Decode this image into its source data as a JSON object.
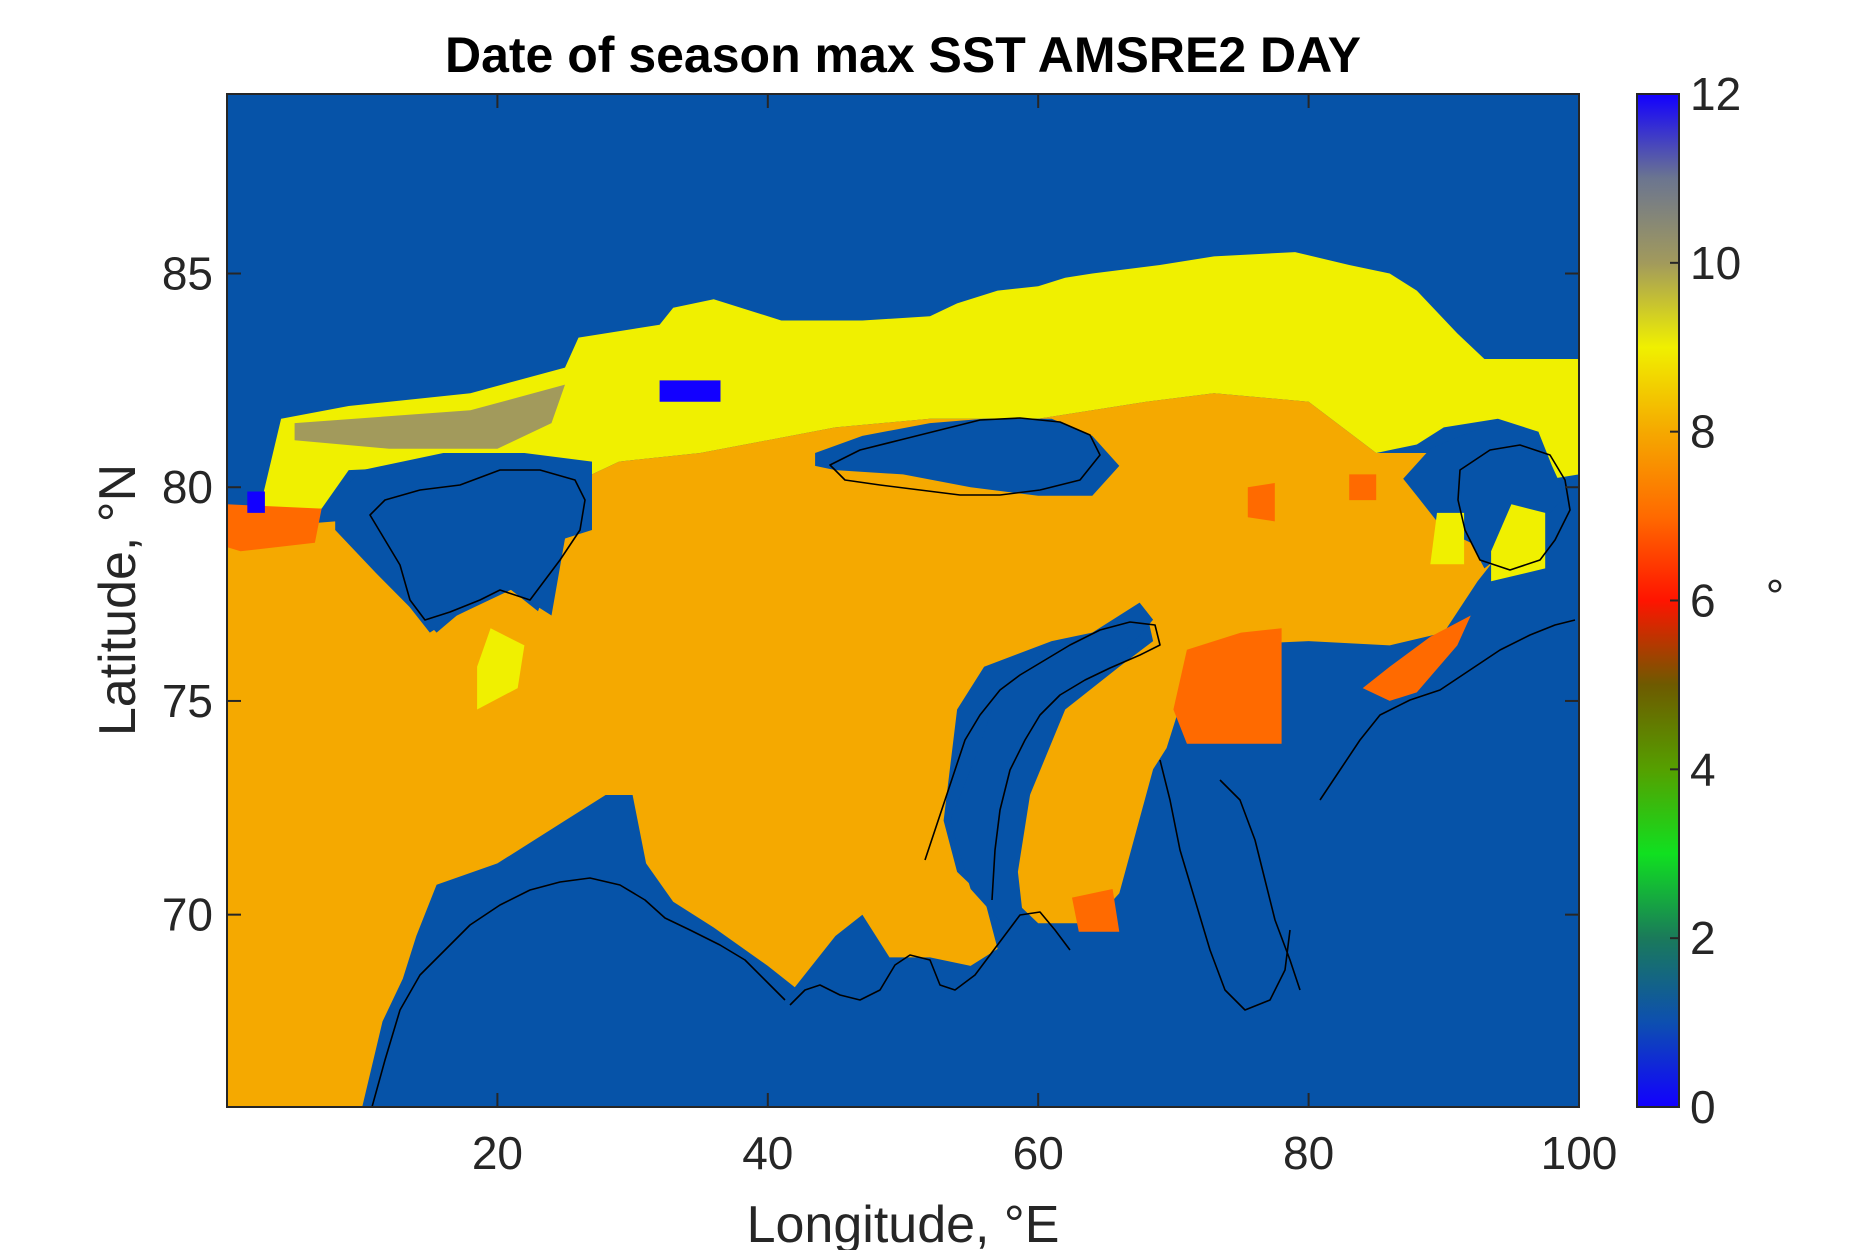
{
  "chart_data": {
    "type": "heatmap",
    "title": "Date of season max SST AMSRE2 DAY",
    "xlabel": "Longitude, °E",
    "ylabel": "Latitude, °N",
    "xlim": [
      0,
      100
    ],
    "ylim": [
      65.5,
      89.2
    ],
    "xticks": [
      20,
      40,
      60,
      80,
      100
    ],
    "yticks": [
      70,
      75,
      80,
      85
    ],
    "grid": false,
    "colorbar": {
      "label": "°",
      "range": [
        0,
        12
      ],
      "ticks": [
        0,
        2,
        4,
        6,
        8,
        10,
        12
      ]
    },
    "background_value": 1,
    "regions": [
      {
        "name": "Yellow north band",
        "value": 9,
        "polygon": [
          [
            2.5,
            79.6
          ],
          [
            4,
            81.6
          ],
          [
            9,
            81.9
          ],
          [
            18,
            82.2
          ],
          [
            25,
            82.8
          ],
          [
            26,
            83.5
          ],
          [
            32,
            83.8
          ],
          [
            33,
            84.2
          ],
          [
            36,
            84.4
          ],
          [
            41,
            83.9
          ],
          [
            47,
            83.9
          ],
          [
            52,
            84.0
          ],
          [
            54,
            84.3
          ],
          [
            57,
            84.6
          ],
          [
            60,
            84.7
          ],
          [
            62,
            84.9
          ],
          [
            64,
            85.0
          ],
          [
            69,
            85.2
          ],
          [
            73,
            85.4
          ],
          [
            79,
            85.5
          ],
          [
            83,
            85.2
          ],
          [
            86,
            85.0
          ],
          [
            88,
            84.6
          ],
          [
            91,
            83.6
          ],
          [
            93,
            83.0
          ],
          [
            100,
            83.0
          ],
          [
            100,
            80.3
          ],
          [
            98,
            80.2
          ],
          [
            97,
            81.3
          ],
          [
            94,
            81.6
          ],
          [
            90,
            81.4
          ],
          [
            88,
            81.0
          ],
          [
            85,
            80.8
          ],
          [
            80,
            82.0
          ],
          [
            73,
            82.2
          ],
          [
            68,
            82.0
          ],
          [
            60,
            81.6
          ],
          [
            52,
            81.6
          ],
          [
            45,
            81.4
          ],
          [
            40,
            81.1
          ],
          [
            35,
            80.8
          ],
          [
            29,
            80.6
          ],
          [
            27,
            80.3
          ],
          [
            22,
            80.4
          ],
          [
            16,
            80.5
          ],
          [
            9,
            80.4
          ],
          [
            7,
            79.5
          ],
          [
            4,
            79.2
          ]
        ]
      },
      {
        "name": "Main orange basin",
        "value": 8,
        "polygon": [
          [
            0,
            65.5
          ],
          [
            10,
            65.5
          ],
          [
            11.5,
            67.5
          ],
          [
            13,
            68.5
          ],
          [
            14,
            69.5
          ],
          [
            15.5,
            70.7
          ],
          [
            20,
            71.2
          ],
          [
            25,
            72.2
          ],
          [
            28,
            72.8
          ],
          [
            30,
            72.8
          ],
          [
            31,
            71.2
          ],
          [
            33,
            70.3
          ],
          [
            36,
            69.7
          ],
          [
            40,
            68.8
          ],
          [
            42,
            68.3
          ],
          [
            45,
            69.5
          ],
          [
            47,
            70.0
          ],
          [
            49,
            69.0
          ],
          [
            52,
            69.0
          ],
          [
            55,
            68.8
          ],
          [
            57,
            69.2
          ],
          [
            56,
            70.4
          ],
          [
            54,
            71.0
          ],
          [
            53,
            72.2
          ],
          [
            54,
            74.8
          ],
          [
            56,
            75.8
          ],
          [
            61,
            76.4
          ],
          [
            64,
            76.6
          ],
          [
            66,
            76.8
          ],
          [
            68,
            77.1
          ],
          [
            68.5,
            76.4
          ],
          [
            66,
            75.8
          ],
          [
            62,
            74.8
          ],
          [
            59,
            72.5
          ],
          [
            58,
            70.4
          ],
          [
            60,
            69.8
          ],
          [
            64,
            69.8
          ],
          [
            66,
            70.5
          ],
          [
            68.5,
            73.4
          ],
          [
            69.5,
            73.9
          ],
          [
            71,
            75.4
          ],
          [
            73,
            76.3
          ],
          [
            80,
            76.4
          ],
          [
            86,
            76.3
          ],
          [
            90,
            76.6
          ],
          [
            92.5,
            77.8
          ],
          [
            95,
            78.8
          ],
          [
            93,
            79.1
          ],
          [
            91,
            79.8
          ],
          [
            90,
            80.2
          ],
          [
            89,
            80.8
          ],
          [
            85,
            80.8
          ],
          [
            80,
            82.0
          ],
          [
            73,
            82.2
          ],
          [
            68,
            82.0
          ],
          [
            60,
            81.6
          ],
          [
            52,
            81.6
          ],
          [
            45,
            81.4
          ],
          [
            40,
            81.1
          ],
          [
            35,
            80.8
          ],
          [
            29,
            80.6
          ],
          [
            27,
            80.3
          ],
          [
            27,
            79.2
          ],
          [
            25,
            78.8
          ],
          [
            23,
            77.1
          ],
          [
            21,
            77.6
          ],
          [
            19.5,
            77.4
          ],
          [
            17,
            77.0
          ],
          [
            15.5,
            76.6
          ],
          [
            14,
            77.1
          ],
          [
            12,
            78.0
          ],
          [
            8,
            79.2
          ],
          [
            0,
            79.0
          ]
        ]
      },
      {
        "name": "Kara Sea orange-red",
        "value": 7,
        "polygon": [
          [
            71,
            76.2
          ],
          [
            75,
            76.6
          ],
          [
            78,
            76.7
          ],
          [
            78,
            74.0
          ],
          [
            71,
            74.0
          ],
          [
            70,
            74.8
          ]
        ]
      },
      {
        "name": "Laptev orange-red",
        "value": 7,
        "polygon": [
          [
            84,
            75.3
          ],
          [
            86,
            75.8
          ],
          [
            89,
            76.5
          ],
          [
            92,
            77.0
          ],
          [
            91,
            76.3
          ],
          [
            88,
            75.2
          ],
          [
            86,
            75.0
          ]
        ]
      },
      {
        "name": "Pechora patch",
        "value": 7,
        "polygon": [
          [
            62.5,
            70.4
          ],
          [
            65.5,
            70.6
          ],
          [
            66,
            69.6
          ],
          [
            63,
            69.6
          ]
        ]
      },
      {
        "name": "West edge patch",
        "value": 7,
        "polygon": [
          [
            0,
            79.6
          ],
          [
            7,
            79.5
          ],
          [
            6.5,
            78.7
          ],
          [
            1,
            78.5
          ],
          [
            0,
            78.6
          ]
        ]
      },
      {
        "name": "Kara small patch",
        "value": 7,
        "polygon": [
          [
            75.5,
            80.0
          ],
          [
            77.5,
            80.1
          ],
          [
            77.5,
            79.2
          ],
          [
            75.5,
            79.3
          ]
        ]
      },
      {
        "name": "Severnaya small patch",
        "value": 7,
        "polygon": [
          [
            83,
            80.3
          ],
          [
            85,
            80.3
          ],
          [
            85,
            79.7
          ],
          [
            83,
            79.7
          ]
        ]
      },
      {
        "name": "Grey-olive patches",
        "value": 10,
        "polygon": [
          [
            5,
            81.5
          ],
          [
            18,
            81.8
          ],
          [
            25,
            82.4
          ],
          [
            24,
            81.5
          ],
          [
            20,
            80.9
          ],
          [
            12,
            80.9
          ],
          [
            5,
            81.1
          ]
        ]
      },
      {
        "name": "Franz Josef Land",
        "value": 1,
        "polygon": [
          [
            43.5,
            80.8
          ],
          [
            47,
            81.2
          ],
          [
            52,
            81.5
          ],
          [
            56,
            81.6
          ],
          [
            61,
            81.6
          ],
          [
            64,
            81.2
          ],
          [
            66,
            80.5
          ],
          [
            64,
            79.8
          ],
          [
            60,
            79.8
          ],
          [
            55,
            80.0
          ],
          [
            50,
            80.3
          ],
          [
            45,
            80.4
          ],
          [
            43.5,
            80.5
          ]
        ]
      },
      {
        "name": "Svalbard",
        "value": 1,
        "polygon": [
          [
            8,
            79.8
          ],
          [
            10,
            80.4
          ],
          [
            16,
            80.8
          ],
          [
            22,
            80.8
          ],
          [
            27,
            80.6
          ],
          [
            27,
            79.0
          ],
          [
            25,
            78.8
          ],
          [
            24,
            77.0
          ],
          [
            21,
            77.6
          ],
          [
            19,
            77.3
          ],
          [
            17,
            77.0
          ],
          [
            15,
            76.6
          ],
          [
            13.5,
            77.2
          ],
          [
            11,
            78.0
          ],
          [
            8,
            79.0
          ]
        ]
      },
      {
        "name": "Novaya Zemlya",
        "value": 1,
        "polygon": [
          [
            53.5,
            72.2
          ],
          [
            55.5,
            73.8
          ],
          [
            57,
            75.2
          ],
          [
            60,
            76.0
          ],
          [
            64,
            76.6
          ],
          [
            67.5,
            77.3
          ],
          [
            68.5,
            76.9
          ],
          [
            66,
            76.0
          ],
          [
            62,
            75.0
          ],
          [
            59.5,
            73.0
          ],
          [
            58.5,
            71.0
          ],
          [
            59,
            69.6
          ],
          [
            57,
            69.9
          ],
          [
            55,
            70.6
          ]
        ]
      },
      {
        "name": "Severnaya Zemlya",
        "value": 1,
        "polygon": [
          [
            87,
            80.2
          ],
          [
            89,
            80.9
          ],
          [
            92,
            81.3
          ],
          [
            94,
            81.5
          ],
          [
            97,
            81.3
          ],
          [
            98,
            80.5
          ],
          [
            99,
            79.8
          ],
          [
            97,
            79.1
          ],
          [
            95,
            78.6
          ],
          [
            93,
            78.1
          ],
          [
            92,
            78.7
          ],
          [
            90,
            79.0
          ],
          [
            88,
            79.8
          ]
        ]
      },
      {
        "name": "Bear Island yellow",
        "value": 9,
        "polygon": [
          [
            18.5,
            74.8
          ],
          [
            21.5,
            75.3
          ],
          [
            22,
            76.3
          ],
          [
            19.5,
            76.7
          ],
          [
            18.5,
            75.8
          ]
        ]
      },
      {
        "name": "Taymyr yellow blob",
        "value": 9,
        "polygon": [
          [
            93.5,
            77.8
          ],
          [
            97.5,
            78.1
          ],
          [
            97.5,
            79.4
          ],
          [
            95,
            79.6
          ],
          [
            93.5,
            78.5
          ]
        ]
      },
      {
        "name": "Kara NE yellow",
        "value": 9,
        "polygon": [
          [
            89,
            78.2
          ],
          [
            91.5,
            78.2
          ],
          [
            91.5,
            79.4
          ],
          [
            89.5,
            79.4
          ]
        ]
      },
      {
        "name": "Dark blue patch",
        "value": 0,
        "polygon": [
          [
            32,
            82.0
          ],
          [
            36.5,
            82.0
          ],
          [
            36.5,
            82.5
          ],
          [
            32,
            82.5
          ]
        ]
      },
      {
        "name": "West blue spot",
        "value": 0,
        "polygon": [
          [
            1.5,
            79.4
          ],
          [
            2.8,
            79.4
          ],
          [
            2.8,
            79.9
          ],
          [
            1.5,
            79.9
          ]
        ]
      }
    ]
  }
}
